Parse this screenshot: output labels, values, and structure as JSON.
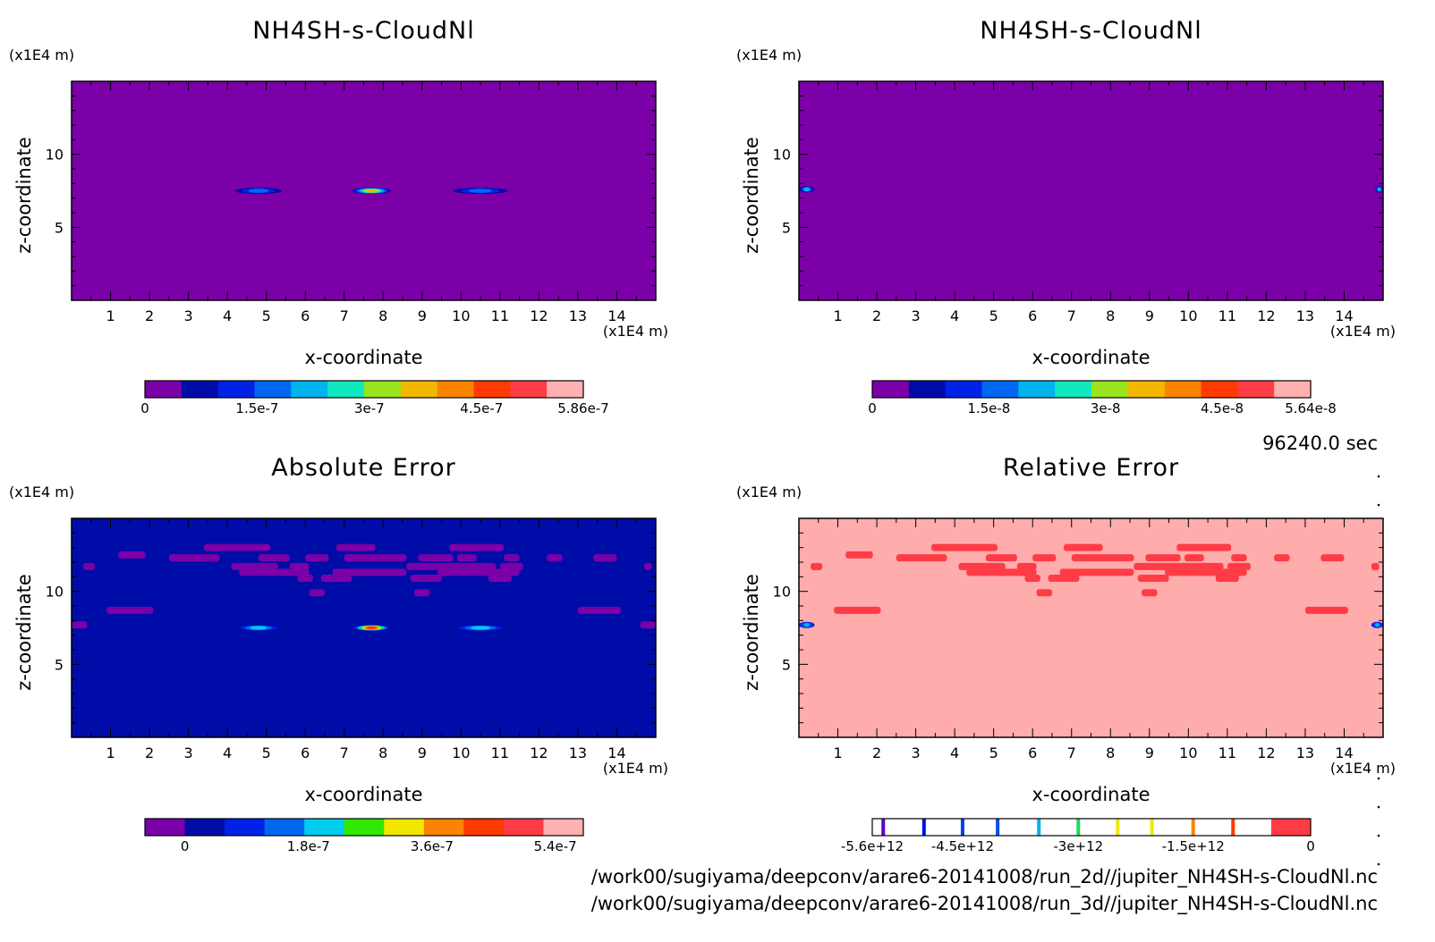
{
  "figure": {
    "time_label": "96240.0 sec",
    "file_paths": [
      "/work00/sugiyama/deepconv/arare6-20141008/run_2d//jupiter_NH4SH-s-CloudNl.nc",
      "/work00/sugiyama/deepconv/arare6-20141008/run_3d//jupiter_NH4SH-s-CloudNl.nc"
    ]
  },
  "chart_data": [
    {
      "type": "heatmap",
      "title": "NH4SH-s-CloudNl",
      "xlabel": "x-coordinate",
      "ylabel": "z-coordinate",
      "x_unit": "(x1E4 m)",
      "y_unit": "(x1E4 m)",
      "xlim": [
        0,
        15
      ],
      "ylim": [
        0,
        15
      ],
      "x_ticks": [
        1,
        2,
        3,
        4,
        5,
        6,
        7,
        8,
        9,
        10,
        11,
        12,
        13,
        14
      ],
      "y_ticks": [
        5,
        10
      ],
      "background_color": "#7b00a8",
      "features": [
        {
          "x": [
            4.2,
            5.4
          ],
          "z": 7.5,
          "max_level": 3
        },
        {
          "x": [
            7.2,
            8.2
          ],
          "z": 7.5,
          "max_level": 7
        },
        {
          "x": [
            9.8,
            11.2
          ],
          "z": 7.5,
          "max_level": 3
        }
      ],
      "colorbar": {
        "colors": [
          "#7b00a8",
          "#000ca8",
          "#0022e6",
          "#0068f0",
          "#00b4ee",
          "#10e8c0",
          "#9ae41e",
          "#f2b800",
          "#fa8400",
          "#ff3a00",
          "#ff3c46",
          "#ffb0b0"
        ],
        "tick_labels": [
          "0",
          "1.5e-7",
          "3e-7",
          "4.5e-7",
          "5.86e-7"
        ],
        "tick_fracs": [
          0,
          0.256,
          0.512,
          0.768,
          1.0
        ]
      }
    },
    {
      "type": "heatmap",
      "title": "NH4SH-s-CloudNl",
      "xlabel": "x-coordinate",
      "ylabel": "z-coordinate",
      "x_unit": "(x1E4 m)",
      "y_unit": "(x1E4 m)",
      "xlim": [
        0,
        15
      ],
      "ylim": [
        0,
        15
      ],
      "x_ticks": [
        1,
        2,
        3,
        4,
        5,
        6,
        7,
        8,
        9,
        10,
        11,
        12,
        13,
        14
      ],
      "y_ticks": [
        5,
        10
      ],
      "background_color": "#7b00a8",
      "features": [
        {
          "x": [
            0,
            0.4
          ],
          "z": 7.6,
          "max_level": 4
        },
        {
          "x": [
            14.8,
            15
          ],
          "z": 7.6,
          "max_level": 4
        }
      ],
      "colorbar": {
        "colors": [
          "#7b00a8",
          "#000ca8",
          "#0022e6",
          "#0068f0",
          "#00b4ee",
          "#10e8c0",
          "#9ae41e",
          "#f2b800",
          "#fa8400",
          "#ff3a00",
          "#ff3c46",
          "#ffb0b0"
        ],
        "tick_labels": [
          "0",
          "1.5e-8",
          "3e-8",
          "4.5e-8",
          "5.64e-8"
        ],
        "tick_fracs": [
          0,
          0.266,
          0.532,
          0.798,
          1.0
        ]
      }
    },
    {
      "type": "heatmap",
      "title": "Absolute Error",
      "xlabel": "x-coordinate",
      "ylabel": "z-coordinate",
      "x_unit": "(x1E4 m)",
      "y_unit": "(x1E4 m)",
      "xlim": [
        0,
        15
      ],
      "ylim": [
        0,
        15
      ],
      "x_ticks": [
        1,
        2,
        3,
        4,
        5,
        6,
        7,
        8,
        9,
        10,
        11,
        12,
        13,
        14
      ],
      "y_ticks": [
        5,
        10
      ],
      "background_color": "#000ca8",
      "features": [
        {
          "x": [
            4.2,
            5.4
          ],
          "z": 7.5,
          "max_level": 4
        },
        {
          "x": [
            7.2,
            8.2
          ],
          "z": 7.5,
          "max_level": 8
        },
        {
          "x": [
            9.8,
            11.2
          ],
          "z": 7.5,
          "max_level": 4
        }
      ],
      "patches": [
        {
          "x": [
            3.4,
            5.1
          ],
          "z": 13.0
        },
        {
          "x": [
            6.8,
            7.8
          ],
          "z": 13.0
        },
        {
          "x": [
            9.7,
            11.1
          ],
          "z": 13.0
        },
        {
          "x": [
            1.2,
            1.9
          ],
          "z": 12.5
        },
        {
          "x": [
            2.5,
            3.8
          ],
          "z": 12.3
        },
        {
          "x": [
            4.8,
            5.6
          ],
          "z": 12.3
        },
        {
          "x": [
            6.0,
            6.6
          ],
          "z": 12.3
        },
        {
          "x": [
            7.0,
            8.6
          ],
          "z": 12.3
        },
        {
          "x": [
            8.9,
            9.8
          ],
          "z": 12.3
        },
        {
          "x": [
            9.9,
            10.4
          ],
          "z": 12.3
        },
        {
          "x": [
            11.1,
            11.5
          ],
          "z": 12.3
        },
        {
          "x": [
            12.2,
            12.6
          ],
          "z": 12.3
        },
        {
          "x": [
            13.4,
            14.0
          ],
          "z": 12.3
        },
        {
          "x": [
            0.3,
            0.6
          ],
          "z": 11.7
        },
        {
          "x": [
            4.1,
            5.3
          ],
          "z": 11.7
        },
        {
          "x": [
            5.6,
            6.1
          ],
          "z": 11.7
        },
        {
          "x": [
            8.6,
            10.9
          ],
          "z": 11.7
        },
        {
          "x": [
            11.0,
            11.6
          ],
          "z": 11.7
        },
        {
          "x": [
            14.7,
            14.9
          ],
          "z": 11.7
        },
        {
          "x": [
            4.3,
            6.1
          ],
          "z": 11.3
        },
        {
          "x": [
            6.7,
            8.6
          ],
          "z": 11.3
        },
        {
          "x": [
            9.4,
            11.5
          ],
          "z": 11.3
        },
        {
          "x": [
            5.8,
            6.2
          ],
          "z": 10.9
        },
        {
          "x": [
            6.4,
            7.2
          ],
          "z": 10.9
        },
        {
          "x": [
            8.7,
            9.5
          ],
          "z": 10.9
        },
        {
          "x": [
            10.7,
            11.3
          ],
          "z": 10.9
        },
        {
          "x": [
            6.1,
            6.5
          ],
          "z": 9.9
        },
        {
          "x": [
            8.8,
            9.2
          ],
          "z": 9.9
        },
        {
          "x": [
            0.9,
            2.1
          ],
          "z": 8.7
        },
        {
          "x": [
            13.0,
            14.1
          ],
          "z": 8.7
        },
        {
          "x": [
            0,
            0.4
          ],
          "z": 7.7
        },
        {
          "x": [
            14.6,
            15
          ],
          "z": 7.7
        }
      ],
      "patch_color": "#7b00a8",
      "colorbar": {
        "colors": [
          "#7b00a8",
          "#000ca8",
          "#0022e6",
          "#0068f0",
          "#00ccee",
          "#30e800",
          "#f2e600",
          "#fa8400",
          "#ff3a00",
          "#ff3c46",
          "#ffb0b0"
        ],
        "tick_labels": [
          "0",
          "1.8e-7",
          "3.6e-7",
          "5.4e-7"
        ],
        "tick_fracs": [
          0.091,
          0.373,
          0.655,
          0.936
        ]
      }
    },
    {
      "type": "heatmap",
      "title": "Relative Error",
      "xlabel": "x-coordinate",
      "ylabel": "z-coordinate",
      "x_unit": "(x1E4 m)",
      "y_unit": "(x1E4 m)",
      "xlim": [
        0,
        15
      ],
      "ylim": [
        0,
        15
      ],
      "x_ticks": [
        1,
        2,
        3,
        4,
        5,
        6,
        7,
        8,
        9,
        10,
        11,
        12,
        13,
        14
      ],
      "y_ticks": [
        5,
        10
      ],
      "background_color": "#ffacac",
      "features": [
        {
          "x": [
            0,
            0.4
          ],
          "z": 7.7,
          "max_level": 4
        },
        {
          "x": [
            14.7,
            15
          ],
          "z": 7.7,
          "max_level": 4
        }
      ],
      "patches": [
        {
          "x": [
            3.4,
            5.1
          ],
          "z": 13.0
        },
        {
          "x": [
            6.8,
            7.8
          ],
          "z": 13.0
        },
        {
          "x": [
            9.7,
            11.1
          ],
          "z": 13.0
        },
        {
          "x": [
            1.2,
            1.9
          ],
          "z": 12.5
        },
        {
          "x": [
            2.5,
            3.8
          ],
          "z": 12.3
        },
        {
          "x": [
            4.8,
            5.6
          ],
          "z": 12.3
        },
        {
          "x": [
            6.0,
            6.6
          ],
          "z": 12.3
        },
        {
          "x": [
            7.0,
            8.6
          ],
          "z": 12.3
        },
        {
          "x": [
            8.9,
            9.8
          ],
          "z": 12.3
        },
        {
          "x": [
            9.9,
            10.4
          ],
          "z": 12.3
        },
        {
          "x": [
            11.1,
            11.5
          ],
          "z": 12.3
        },
        {
          "x": [
            12.2,
            12.6
          ],
          "z": 12.3
        },
        {
          "x": [
            13.4,
            14.0
          ],
          "z": 12.3
        },
        {
          "x": [
            0.3,
            0.6
          ],
          "z": 11.7
        },
        {
          "x": [
            4.1,
            5.3
          ],
          "z": 11.7
        },
        {
          "x": [
            5.6,
            6.1
          ],
          "z": 11.7
        },
        {
          "x": [
            8.6,
            10.9
          ],
          "z": 11.7
        },
        {
          "x": [
            11.0,
            11.6
          ],
          "z": 11.7
        },
        {
          "x": [
            14.7,
            14.9
          ],
          "z": 11.7
        },
        {
          "x": [
            4.3,
            6.1
          ],
          "z": 11.3
        },
        {
          "x": [
            6.7,
            8.6
          ],
          "z": 11.3
        },
        {
          "x": [
            9.4,
            11.5
          ],
          "z": 11.3
        },
        {
          "x": [
            5.8,
            6.2
          ],
          "z": 10.9
        },
        {
          "x": [
            6.4,
            7.2
          ],
          "z": 10.9
        },
        {
          "x": [
            8.7,
            9.5
          ],
          "z": 10.9
        },
        {
          "x": [
            10.7,
            11.3
          ],
          "z": 10.9
        },
        {
          "x": [
            6.1,
            6.5
          ],
          "z": 9.9
        },
        {
          "x": [
            8.8,
            9.2
          ],
          "z": 9.9
        },
        {
          "x": [
            0.9,
            2.1
          ],
          "z": 8.7
        },
        {
          "x": [
            13.0,
            14.1
          ],
          "z": 8.7
        }
      ],
      "patch_color": "#ff3c46",
      "colorbar": {
        "type": "lines",
        "line_colors": [
          "#5a00c8",
          "#0010e0",
          "#0040f0",
          "#0050e8",
          "#00b4ee",
          "#20d860",
          "#f2e600",
          "#f2e600",
          "#fa8400",
          "#ff3a00"
        ],
        "line_fracs": [
          0.025,
          0.118,
          0.206,
          0.286,
          0.38,
          0.47,
          0.56,
          0.638,
          0.732,
          0.823
        ],
        "end_block": {
          "color": "#ff3c46",
          "from": 0.91
        },
        "tick_labels": [
          "-5.6e+12",
          "-4.5e+12",
          "-3e+12",
          "-1.5e+12",
          "0"
        ],
        "tick_fracs": [
          0.0,
          0.206,
          0.47,
          0.732,
          1.0
        ]
      }
    }
  ]
}
